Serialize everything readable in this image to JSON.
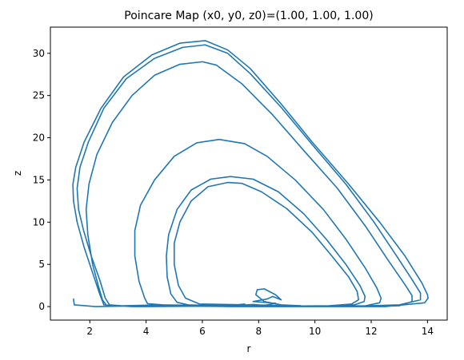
{
  "chart_data": {
    "type": "line",
    "title": "Poincare Map (x0, y0, z0)=(1.00, 1.00, 1.00)",
    "xlabel": "r",
    "ylabel": "z",
    "xlim": [
      0.6,
      14.7
    ],
    "ylim": [
      -1.6,
      33.1
    ],
    "xticks": [
      2,
      4,
      6,
      8,
      10,
      12,
      14
    ],
    "yticks": [
      0,
      5,
      10,
      15,
      20,
      25,
      30
    ],
    "grid": false,
    "line_color": "#1f77b4",
    "series": [
      {
        "values": [
          [
            1.42,
            0.9
          ],
          [
            1.45,
            0.2
          ],
          [
            2.2,
            0.0
          ],
          [
            4.0,
            0.1
          ],
          [
            5.5,
            0.15
          ],
          [
            6.9,
            0.05
          ],
          [
            8.0,
            0.0
          ],
          [
            9.5,
            0.0
          ],
          [
            11.0,
            0.0
          ],
          [
            12.5,
            0.0
          ],
          [
            13.9,
            0.45
          ],
          [
            14.02,
            1.0
          ],
          [
            14.0,
            1.4
          ],
          [
            13.8,
            2.8
          ],
          [
            13.2,
            6.0
          ],
          [
            12.3,
            10.0
          ],
          [
            11.2,
            14.5
          ],
          [
            9.9,
            19.5
          ],
          [
            8.8,
            24.0
          ],
          [
            7.7,
            28.2
          ],
          [
            6.9,
            30.4
          ],
          [
            6.1,
            31.5
          ],
          [
            5.2,
            31.2
          ],
          [
            4.2,
            29.8
          ],
          [
            3.2,
            27.2
          ],
          [
            2.4,
            23.5
          ],
          [
            1.8,
            19.5
          ],
          [
            1.5,
            16.5
          ],
          [
            1.4,
            14.5
          ],
          [
            1.42,
            12.5
          ],
          [
            1.55,
            10.0
          ],
          [
            1.8,
            7.0
          ],
          [
            2.1,
            4.0
          ],
          [
            2.35,
            1.5
          ],
          [
            2.5,
            0.2
          ],
          [
            3.5,
            0.0
          ],
          [
            5.0,
            0.1
          ],
          [
            7.0,
            0.0
          ],
          [
            9.0,
            0.05
          ],
          [
            11.0,
            0.0
          ],
          [
            13.0,
            0.2
          ],
          [
            13.75,
            0.8
          ],
          [
            13.75,
            1.6
          ],
          [
            13.45,
            3.2
          ],
          [
            12.9,
            6.0
          ],
          [
            12.1,
            10.0
          ],
          [
            11.1,
            14.5
          ],
          [
            9.9,
            19.2
          ],
          [
            8.8,
            23.6
          ],
          [
            7.7,
            27.6
          ],
          [
            6.9,
            30.0
          ],
          [
            6.1,
            31.0
          ],
          [
            5.3,
            30.7
          ],
          [
            4.3,
            29.4
          ],
          [
            3.3,
            27.0
          ],
          [
            2.5,
            23.5
          ],
          [
            1.95,
            19.5
          ],
          [
            1.65,
            16.5
          ],
          [
            1.55,
            14.0
          ],
          [
            1.6,
            11.5
          ],
          [
            1.78,
            9.0
          ],
          [
            2.05,
            6.0
          ],
          [
            2.35,
            3.2
          ],
          [
            2.55,
            1.0
          ],
          [
            2.7,
            0.2
          ],
          [
            3.5,
            0.0
          ],
          [
            5.5,
            0.05
          ],
          [
            7.5,
            0.0
          ],
          [
            9.5,
            0.05
          ],
          [
            11.5,
            0.0
          ],
          [
            13.0,
            0.1
          ],
          [
            13.45,
            0.6
          ],
          [
            13.45,
            1.3
          ],
          [
            13.2,
            2.6
          ],
          [
            12.6,
            5.5
          ],
          [
            11.8,
            9.5
          ],
          [
            10.8,
            14.0
          ],
          [
            9.6,
            18.5
          ],
          [
            8.5,
            22.7
          ],
          [
            7.4,
            26.4
          ],
          [
            6.5,
            28.6
          ],
          [
            6.0,
            29.0
          ],
          [
            5.2,
            28.7
          ],
          [
            4.3,
            27.4
          ],
          [
            3.5,
            25.0
          ],
          [
            2.8,
            21.8
          ],
          [
            2.25,
            18.0
          ],
          [
            1.97,
            14.5
          ],
          [
            1.87,
            11.5
          ],
          [
            1.93,
            8.5
          ],
          [
            2.1,
            5.0
          ],
          [
            2.3,
            2.5
          ],
          [
            2.45,
            0.8
          ],
          [
            2.6,
            0.1
          ],
          [
            4.0,
            0.0
          ],
          [
            6.0,
            0.05
          ],
          [
            8.0,
            0.0
          ],
          [
            10.0,
            0.05
          ],
          [
            11.8,
            0.1
          ],
          [
            12.3,
            0.45
          ],
          [
            12.35,
            1.0
          ],
          [
            12.2,
            2.2
          ],
          [
            11.8,
            4.5
          ],
          [
            11.1,
            8.0
          ],
          [
            10.3,
            11.5
          ],
          [
            9.3,
            15.0
          ],
          [
            8.3,
            17.8
          ],
          [
            7.5,
            19.3
          ],
          [
            6.6,
            19.8
          ],
          [
            5.8,
            19.4
          ],
          [
            5.0,
            17.8
          ],
          [
            4.3,
            15.0
          ],
          [
            3.8,
            12.0
          ],
          [
            3.6,
            9.0
          ],
          [
            3.6,
            6.0
          ],
          [
            3.75,
            3.0
          ],
          [
            3.95,
            1.0
          ],
          [
            4.05,
            0.35
          ],
          [
            5.0,
            0.1
          ],
          [
            7.0,
            0.05
          ],
          [
            9.0,
            0.05
          ],
          [
            10.5,
            0.1
          ],
          [
            11.4,
            0.2
          ],
          [
            11.75,
            0.6
          ],
          [
            11.78,
            1.2
          ],
          [
            11.6,
            2.5
          ],
          [
            11.1,
            5.0
          ],
          [
            10.4,
            8.0
          ],
          [
            9.6,
            11.0
          ],
          [
            8.7,
            13.6
          ],
          [
            7.8,
            15.1
          ],
          [
            7.0,
            15.4
          ],
          [
            6.3,
            15.1
          ],
          [
            5.6,
            13.8
          ],
          [
            5.1,
            11.5
          ],
          [
            4.8,
            8.5
          ],
          [
            4.72,
            6.0
          ],
          [
            4.75,
            3.5
          ],
          [
            4.88,
            1.5
          ],
          [
            5.1,
            0.5
          ],
          [
            5.5,
            0.2
          ],
          [
            7.0,
            0.05
          ],
          [
            9.0,
            0.05
          ],
          [
            10.5,
            0.1
          ],
          [
            11.3,
            0.3
          ],
          [
            11.55,
            0.8
          ],
          [
            11.5,
            1.8
          ],
          [
            11.2,
            3.5
          ],
          [
            10.6,
            6.0
          ],
          [
            9.9,
            8.8
          ],
          [
            9.0,
            11.6
          ],
          [
            8.1,
            13.6
          ],
          [
            7.4,
            14.6
          ],
          [
            6.9,
            14.7
          ],
          [
            6.2,
            14.2
          ],
          [
            5.6,
            12.5
          ],
          [
            5.2,
            10.0
          ],
          [
            5.0,
            7.5
          ],
          [
            5.0,
            5.0
          ],
          [
            5.15,
            2.5
          ],
          [
            5.4,
            1.0
          ],
          [
            5.9,
            0.3
          ],
          [
            7.0,
            0.15
          ],
          [
            7.5,
            0.3
          ],
          [
            7.1,
            0.1
          ],
          [
            7.8,
            0.25
          ],
          [
            8.2,
            0.15
          ],
          [
            8.6,
            0.4
          ],
          [
            7.8,
            0.6
          ],
          [
            8.3,
            0.9
          ],
          [
            8.5,
            1.2
          ],
          [
            8.8,
            0.8
          ],
          [
            8.6,
            1.4
          ],
          [
            8.2,
            2.1
          ],
          [
            7.95,
            2.0
          ],
          [
            7.9,
            1.4
          ],
          [
            8.2,
            0.6
          ],
          [
            8.8,
            0.2
          ],
          [
            9.5,
            0.1
          ],
          [
            6.0,
            0.3
          ],
          [
            6.3,
            0.25
          ],
          [
            5.8,
            0.15
          ],
          [
            4.5,
            0.2
          ],
          [
            3.2,
            0.1
          ]
        ]
      }
    ]
  }
}
